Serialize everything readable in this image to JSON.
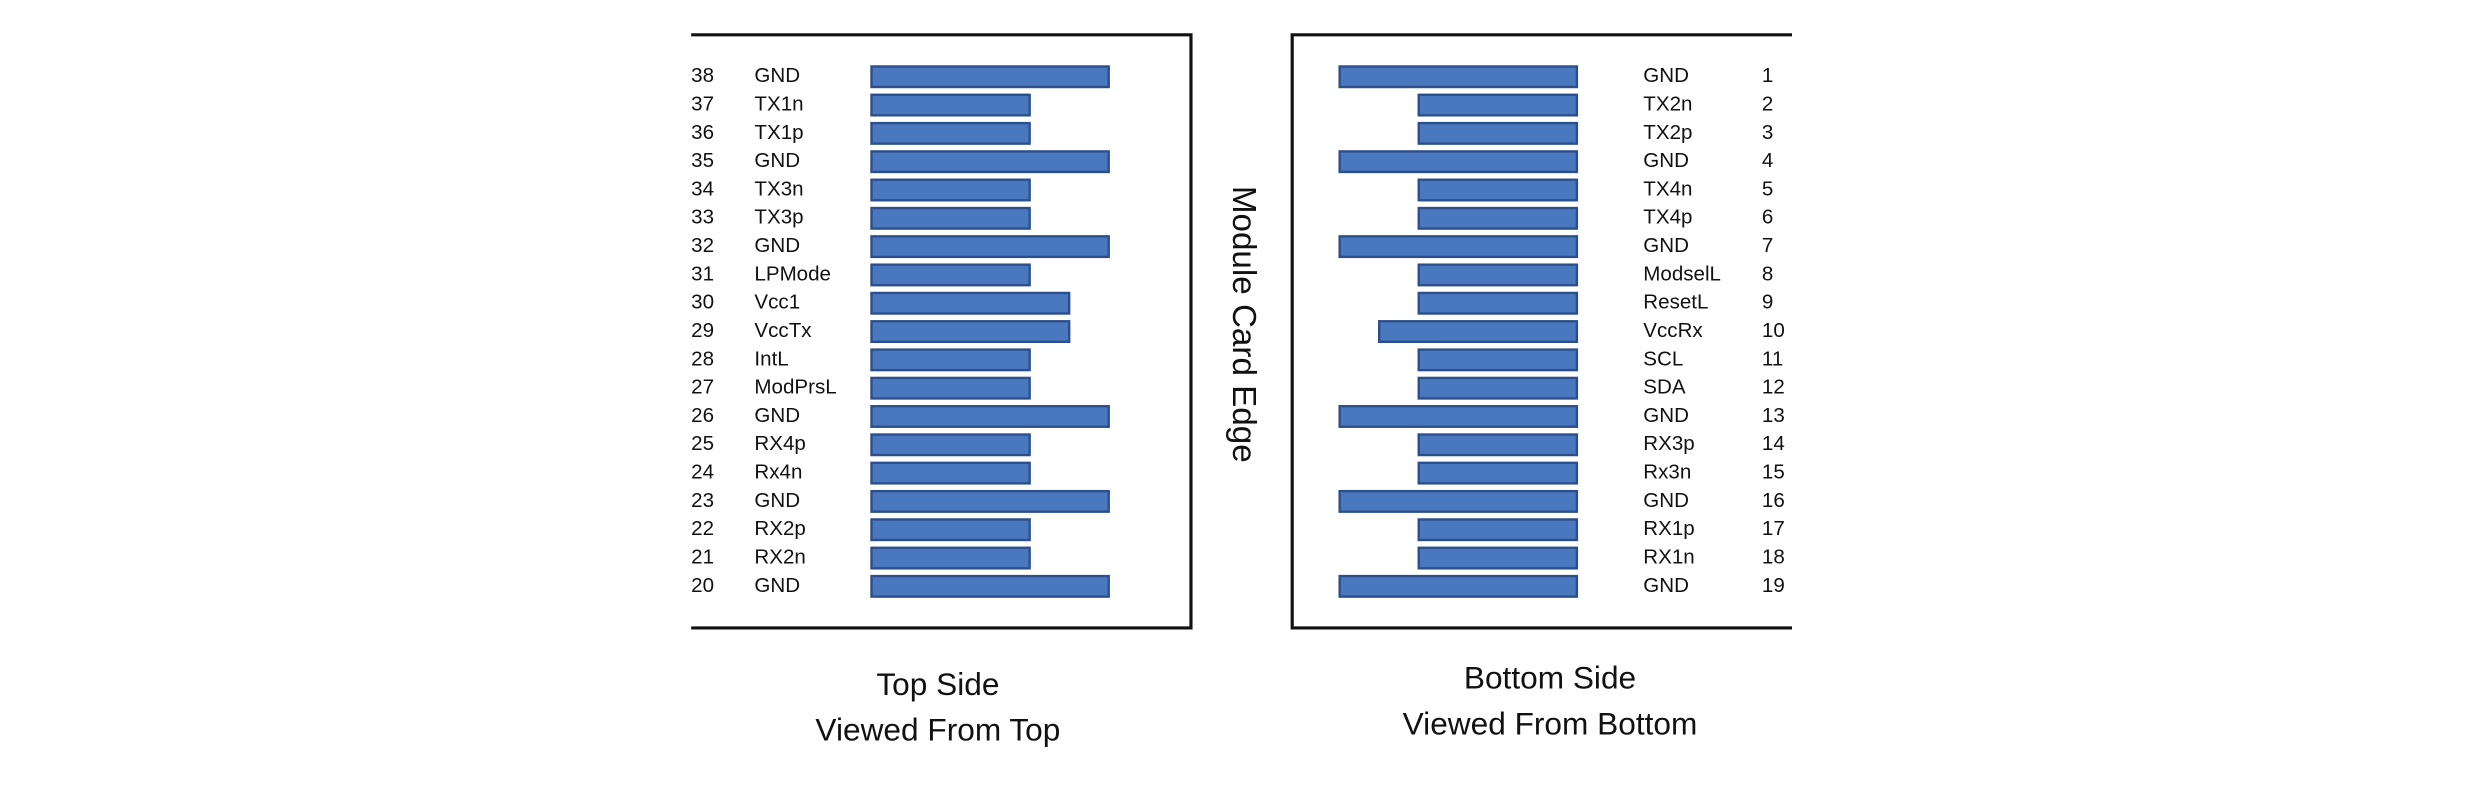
{
  "center_label": "Module Card Edge",
  "top_side": {
    "pins": [
      {
        "number": 38,
        "label": "GND"
      },
      {
        "number": 37,
        "label": "TX1n"
      },
      {
        "number": 36,
        "label": "TX1p"
      },
      {
        "number": 35,
        "label": "GND"
      },
      {
        "number": 34,
        "label": "TX3n"
      },
      {
        "number": 33,
        "label": "TX3p"
      },
      {
        "number": 32,
        "label": "GND"
      },
      {
        "number": 31,
        "label": "LPMode"
      },
      {
        "number": 30,
        "label": "Vcc1"
      },
      {
        "number": 29,
        "label": "VccTx"
      },
      {
        "number": 28,
        "label": "IntL"
      },
      {
        "number": 27,
        "label": "ModPrsL"
      },
      {
        "number": 26,
        "label": "GND"
      },
      {
        "number": 25,
        "label": "RX4p"
      },
      {
        "number": 24,
        "label": "Rx4n"
      },
      {
        "number": 23,
        "label": "GND"
      },
      {
        "number": 22,
        "label": "RX2p"
      },
      {
        "number": 21,
        "label": "RX2n"
      },
      {
        "number": 20,
        "label": "GND"
      }
    ],
    "caption": [
      "Top Side",
      "Viewed From Top"
    ]
  },
  "bottom_side": {
    "pins": [
      {
        "number": 1,
        "label": "GND"
      },
      {
        "number": 2,
        "label": "TX2n"
      },
      {
        "number": 3,
        "label": "TX2p"
      },
      {
        "number": 4,
        "label": "GND"
      },
      {
        "number": 5,
        "label": "TX4n"
      },
      {
        "number": 6,
        "label": "TX4p"
      },
      {
        "number": 7,
        "label": "GND"
      },
      {
        "number": 8,
        "label": "ModselL"
      },
      {
        "number": 9,
        "label": "ResetL"
      },
      {
        "number": 10,
        "label": "VccRx"
      },
      {
        "number": 11,
        "label": "SCL"
      },
      {
        "number": 12,
        "label": "SDA"
      },
      {
        "number": 13,
        "label": "GND"
      },
      {
        "number": 14,
        "label": "RX3p"
      },
      {
        "number": 15,
        "label": "Rx3n"
      },
      {
        "number": 16,
        "label": "GND"
      },
      {
        "number": 17,
        "label": "RX1p"
      },
      {
        "number": 18,
        "label": "RX1n"
      },
      {
        "number": 19,
        "label": "GND"
      }
    ],
    "caption": [
      "Bottom Side",
      "Viewed From Bottom"
    ]
  }
}
